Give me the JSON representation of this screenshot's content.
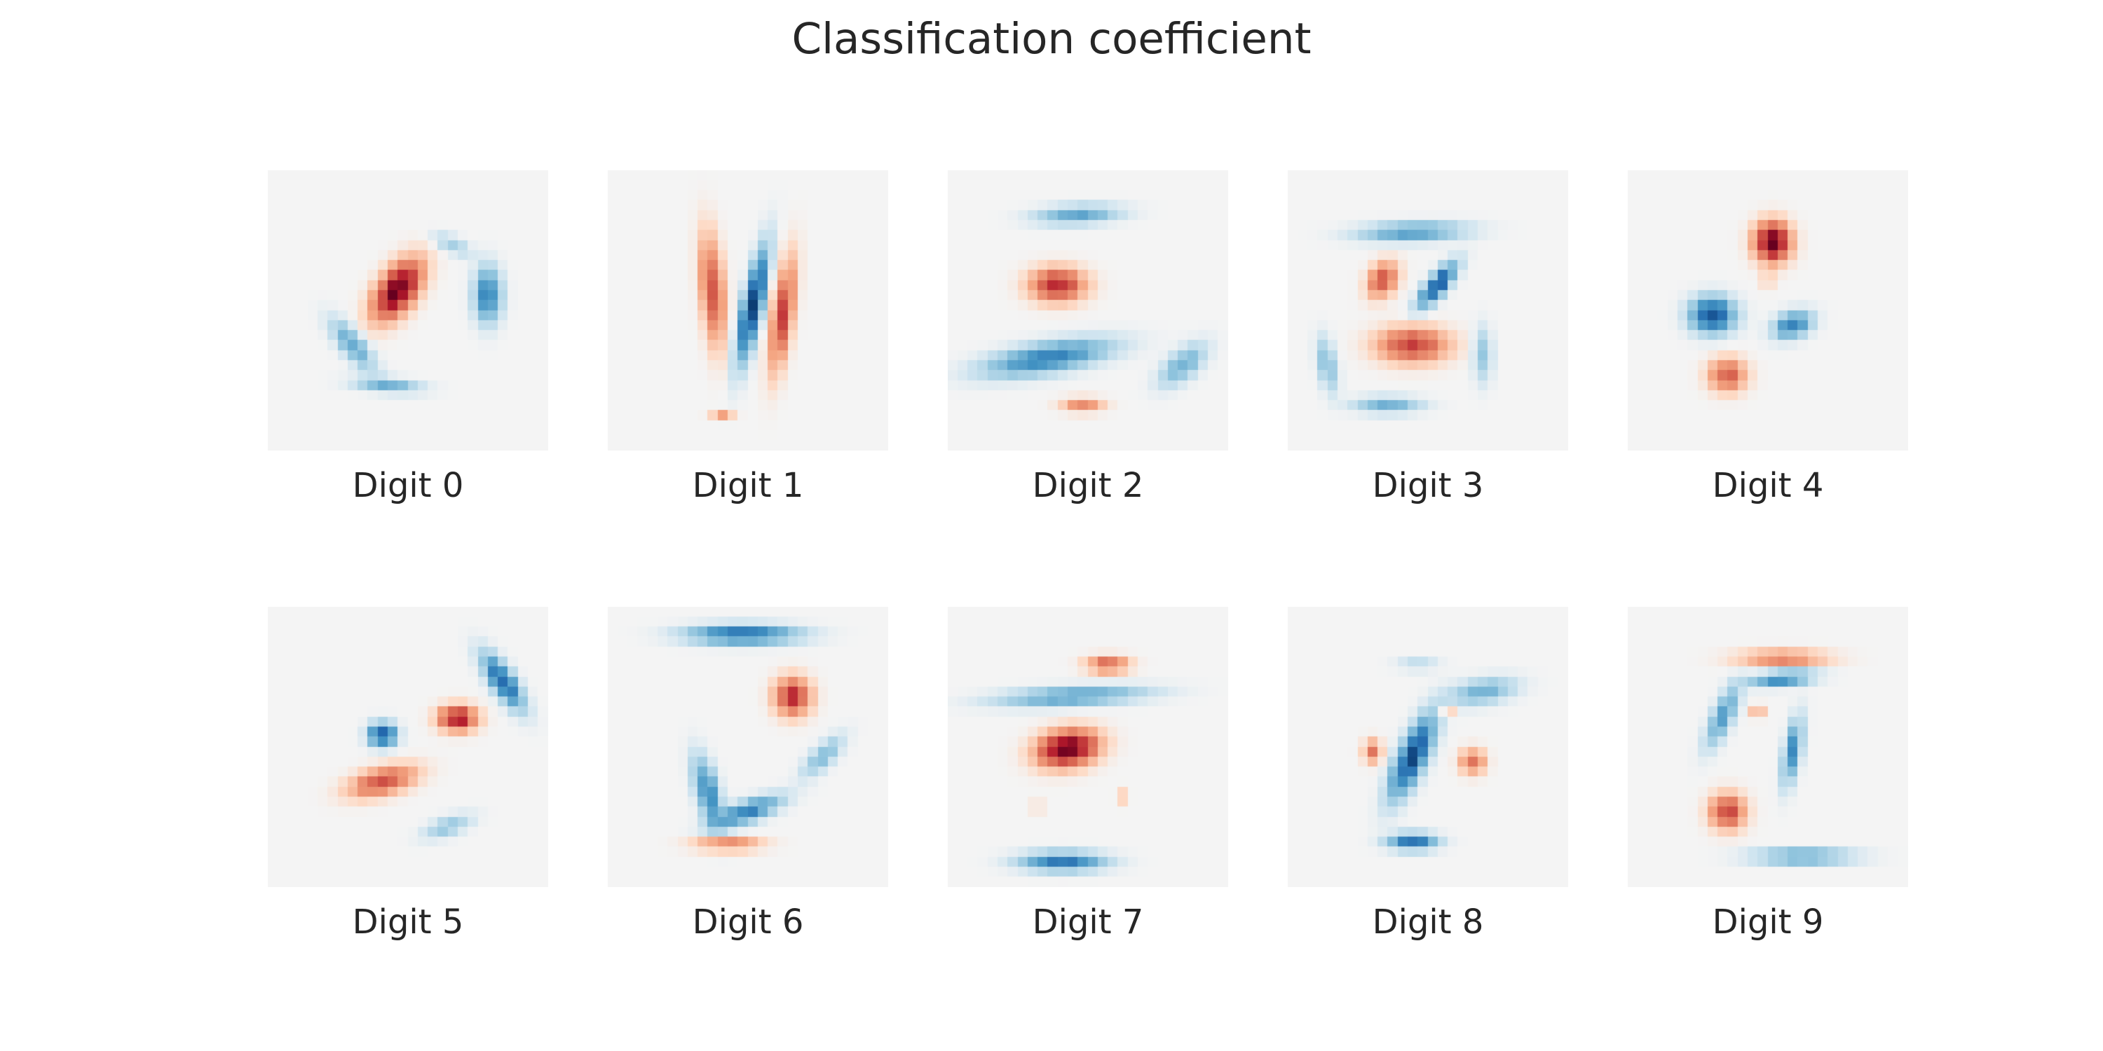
{
  "chart_data": {
    "type": "heatmap",
    "title": "Classification coefficient",
    "colormap": "RdBu_r (blue = negative, red = positive)",
    "background": "#f4f4f4",
    "grid": false,
    "axes": false,
    "pixel_grid": [
      28,
      28
    ],
    "panels": [
      {
        "label": "Digit 0",
        "blobs": [
          {
            "x": 13,
            "y": 12,
            "rx": 1.7,
            "ry": 3.2,
            "angle": 35,
            "v": 1.0
          },
          {
            "x": 8.5,
            "y": 17.5,
            "rx": 1.1,
            "ry": 3.0,
            "angle": -40,
            "v": -0.4
          },
          {
            "x": 12,
            "y": 21.5,
            "rx": 3.2,
            "ry": 0.7,
            "angle": 5,
            "v": -0.35
          },
          {
            "x": 22,
            "y": 12.5,
            "rx": 1.3,
            "ry": 2.6,
            "angle": 0,
            "v": -0.6
          },
          {
            "x": 18.5,
            "y": 7.5,
            "rx": 2.0,
            "ry": 0.8,
            "angle": 25,
            "v": -0.2
          }
        ]
      },
      {
        "label": "Digit 1",
        "blobs": [
          {
            "x": 10.5,
            "y": 12,
            "rx": 1.1,
            "ry": 5.2,
            "angle": -5,
            "v": 0.55
          },
          {
            "x": 14.5,
            "y": 13.5,
            "rx": 0.9,
            "ry": 5.3,
            "angle": 12,
            "v": -1.0
          },
          {
            "x": 17.5,
            "y": 14.5,
            "rx": 1.0,
            "ry": 5.2,
            "angle": 8,
            "v": 0.6
          },
          {
            "x": 11.5,
            "y": 24.5,
            "rx": 1.1,
            "ry": 0.4,
            "angle": 0,
            "v": 0.25
          }
        ]
      },
      {
        "label": "Digit 2",
        "blobs": [
          {
            "x": 13,
            "y": 4.5,
            "rx": 4.0,
            "ry": 0.9,
            "angle": -3,
            "v": -0.4
          },
          {
            "x": 11,
            "y": 11.5,
            "rx": 2.6,
            "ry": 1.6,
            "angle": 0,
            "v": 0.7
          },
          {
            "x": 10,
            "y": 18.8,
            "rx": 6.0,
            "ry": 1.4,
            "angle": -10,
            "v": -0.6
          },
          {
            "x": 23.5,
            "y": 19.5,
            "rx": 1.3,
            "ry": 2.7,
            "angle": 50,
            "v": -0.35
          },
          {
            "x": 13.5,
            "y": 23.5,
            "rx": 2.0,
            "ry": 0.7,
            "angle": 0,
            "v": 0.35
          }
        ]
      },
      {
        "label": "Digit 3",
        "blobs": [
          {
            "x": 12.5,
            "y": 6.2,
            "rx": 5.0,
            "ry": 0.9,
            "angle": -2,
            "v": -0.45
          },
          {
            "x": 9.5,
            "y": 11,
            "rx": 1.3,
            "ry": 1.8,
            "angle": 30,
            "v": 0.55
          },
          {
            "x": 15,
            "y": 11.5,
            "rx": 0.9,
            "ry": 2.6,
            "angle": 40,
            "v": -0.85
          },
          {
            "x": 12.5,
            "y": 17.5,
            "rx": 3.4,
            "ry": 1.7,
            "angle": 0,
            "v": 0.6
          },
          {
            "x": 4,
            "y": 19.5,
            "rx": 0.9,
            "ry": 2.6,
            "angle": -10,
            "v": -0.3
          },
          {
            "x": 10,
            "y": 23.5,
            "rx": 3.2,
            "ry": 0.8,
            "angle": 0,
            "v": -0.35
          },
          {
            "x": 19.5,
            "y": 18.5,
            "rx": 0.9,
            "ry": 2.6,
            "angle": 0,
            "v": -0.25
          }
        ]
      },
      {
        "label": "Digit 4",
        "blobs": [
          {
            "x": 14.5,
            "y": 7.2,
            "rx": 1.7,
            "ry": 1.9,
            "angle": 0,
            "v": 1.0
          },
          {
            "x": 8.5,
            "y": 14.5,
            "rx": 2.1,
            "ry": 1.7,
            "angle": 0,
            "v": -0.85
          },
          {
            "x": 16.5,
            "y": 15.5,
            "rx": 1.9,
            "ry": 1.2,
            "angle": -20,
            "v": -0.6
          },
          {
            "x": 10,
            "y": 20.5,
            "rx": 1.8,
            "ry": 1.6,
            "angle": 0,
            "v": 0.5
          },
          {
            "x": 14,
            "y": 11,
            "rx": 0.5,
            "ry": 0.9,
            "angle": 0,
            "v": 0.2
          }
        ]
      },
      {
        "label": "Digit 5",
        "blobs": [
          {
            "x": 23.5,
            "y": 7.5,
            "rx": 1.1,
            "ry": 3.1,
            "angle": -35,
            "v": -0.75
          },
          {
            "x": 19,
            "y": 11.2,
            "rx": 1.8,
            "ry": 1.2,
            "angle": 0,
            "v": 0.8
          },
          {
            "x": 11.5,
            "y": 12.8,
            "rx": 1.3,
            "ry": 1.1,
            "angle": 0,
            "v": -0.85
          },
          {
            "x": 11.5,
            "y": 17.5,
            "rx": 3.3,
            "ry": 1.3,
            "angle": -15,
            "v": 0.55
          },
          {
            "x": 18,
            "y": 22,
            "rx": 2.4,
            "ry": 0.9,
            "angle": -20,
            "v": -0.25
          }
        ]
      },
      {
        "label": "Digit 6",
        "blobs": [
          {
            "x": 13.5,
            "y": 2.8,
            "rx": 5.2,
            "ry": 0.9,
            "angle": 0,
            "v": -0.7
          },
          {
            "x": 18.5,
            "y": 9,
            "rx": 1.7,
            "ry": 1.8,
            "angle": 0,
            "v": 0.7
          },
          {
            "x": 10,
            "y": 18.5,
            "rx": 1.1,
            "ry": 3.4,
            "angle": -15,
            "v": -0.55
          },
          {
            "x": 14,
            "y": 20.5,
            "rx": 3.4,
            "ry": 1.0,
            "angle": -20,
            "v": -0.6
          },
          {
            "x": 21.5,
            "y": 15,
            "rx": 1.0,
            "ry": 2.6,
            "angle": 45,
            "v": -0.3
          },
          {
            "x": 12,
            "y": 23.8,
            "rx": 3.2,
            "ry": 0.6,
            "angle": 0,
            "v": 0.45
          }
        ]
      },
      {
        "label": "Digit 7",
        "blobs": [
          {
            "x": 16,
            "y": 5.8,
            "rx": 2.0,
            "ry": 0.8,
            "angle": 0,
            "v": 0.5
          },
          {
            "x": 12.5,
            "y": 9,
            "rx": 7.0,
            "ry": 0.9,
            "angle": -3,
            "v": -0.45
          },
          {
            "x": 12,
            "y": 14.2,
            "rx": 2.9,
            "ry": 1.7,
            "angle": -10,
            "v": 1.0
          },
          {
            "x": 11.5,
            "y": 25.5,
            "rx": 4.0,
            "ry": 0.9,
            "angle": 0,
            "v": -0.65
          },
          {
            "x": 9,
            "y": 20,
            "rx": 0.5,
            "ry": 0.7,
            "angle": 0,
            "v": 0.15
          },
          {
            "x": 17.5,
            "y": 19,
            "rx": 0.5,
            "ry": 0.7,
            "angle": 0,
            "v": 0.15
          }
        ]
      },
      {
        "label": "Digit 8",
        "blobs": [
          {
            "x": 19.5,
            "y": 8.5,
            "rx": 3.2,
            "ry": 1.2,
            "angle": -10,
            "v": -0.35
          },
          {
            "x": 13,
            "y": 5.8,
            "rx": 2.0,
            "ry": 0.6,
            "angle": 0,
            "v": -0.15
          },
          {
            "x": 12.5,
            "y": 15,
            "rx": 1.3,
            "ry": 4.2,
            "angle": 25,
            "v": -0.9
          },
          {
            "x": 8.5,
            "y": 14.5,
            "rx": 0.9,
            "ry": 1.1,
            "angle": 0,
            "v": 0.4
          },
          {
            "x": 18.5,
            "y": 15.5,
            "rx": 1.2,
            "ry": 1.2,
            "angle": 0,
            "v": 0.45
          },
          {
            "x": 12.5,
            "y": 23.5,
            "rx": 2.3,
            "ry": 0.8,
            "angle": 0,
            "v": -0.7
          },
          {
            "x": 16,
            "y": 10.5,
            "rx": 0.6,
            "ry": 0.6,
            "angle": 0,
            "v": 0.25
          }
        ]
      },
      {
        "label": "Digit 9",
        "blobs": [
          {
            "x": 15.5,
            "y": 5.2,
            "rx": 4.2,
            "ry": 0.8,
            "angle": 0,
            "v": 0.4
          },
          {
            "x": 15.5,
            "y": 7.2,
            "rx": 3.0,
            "ry": 0.7,
            "angle": -5,
            "v": -0.6
          },
          {
            "x": 9.5,
            "y": 11,
            "rx": 1.0,
            "ry": 3.2,
            "angle": 25,
            "v": -0.45
          },
          {
            "x": 16.5,
            "y": 14.5,
            "rx": 0.8,
            "ry": 3.2,
            "angle": 10,
            "v": -0.55
          },
          {
            "x": 10,
            "y": 20.5,
            "rx": 1.7,
            "ry": 1.7,
            "angle": 0,
            "v": 0.6
          },
          {
            "x": 17.5,
            "y": 25,
            "rx": 4.8,
            "ry": 0.6,
            "angle": 0,
            "v": -0.55
          },
          {
            "x": 13,
            "y": 10.5,
            "rx": 0.6,
            "ry": 0.6,
            "angle": 0,
            "v": 0.3
          }
        ]
      }
    ]
  }
}
